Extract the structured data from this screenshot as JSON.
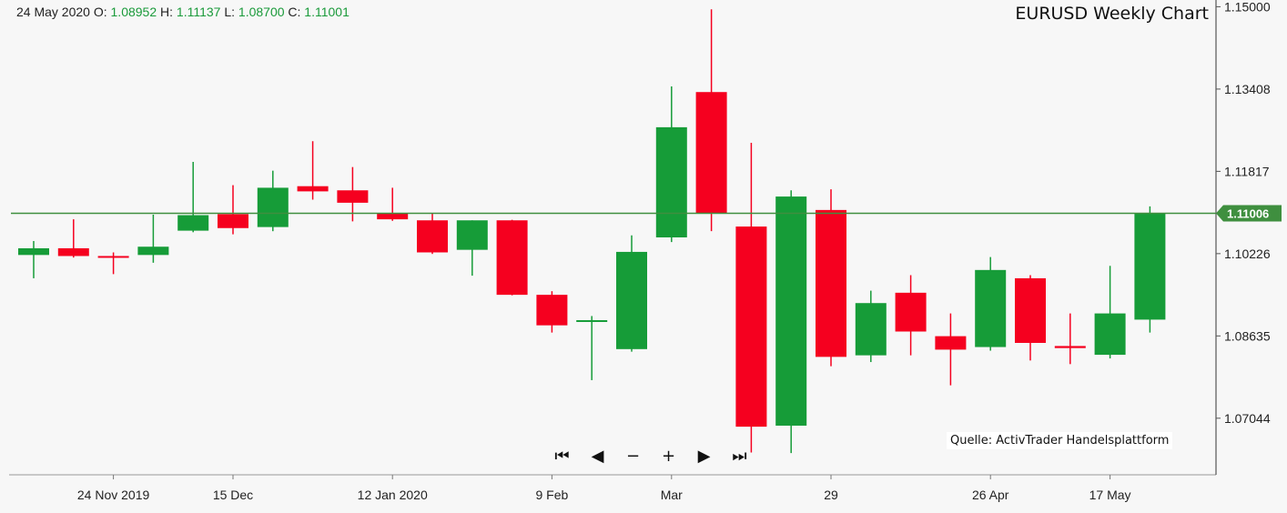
{
  "header": {
    "date": "24 May 2020",
    "o_label": "O:",
    "o_value": "1.08952",
    "h_label": "H:",
    "h_value": "1.11137",
    "l_label": "L:",
    "l_value": "1.08700",
    "c_label": "C:",
    "c_value": "1.11001"
  },
  "title": "EURUSD Weekly Chart",
  "source": "Quelle: ActivTrader Handelsplattform",
  "navigation": [
    {
      "name": "first-icon",
      "glyph": "⏮"
    },
    {
      "name": "previous-icon",
      "glyph": "◀"
    },
    {
      "name": "zoom-out-icon",
      "glyph": "−"
    },
    {
      "name": "zoom-in-icon",
      "glyph": "+"
    },
    {
      "name": "next-icon",
      "glyph": "▶"
    },
    {
      "name": "last-icon",
      "glyph": "⏭"
    }
  ],
  "colors": {
    "up": "#169c38",
    "down": "#f5001f",
    "last_price_line": "#3f8f3f",
    "last_price_badge": "#3f8f3f",
    "background": "#f7f7f7"
  },
  "chart_data": {
    "type": "candlestick",
    "title": "EURUSD Weekly Chart",
    "y_ticks": [
      "1.15000",
      "1.13408",
      "1.11817",
      "1.10226",
      "1.08635",
      "1.07044"
    ],
    "ylim": [
      1.0595,
      1.1513
    ],
    "last_price": "1.11006",
    "x_tick_labels": [
      {
        "label": "24 Nov 2019",
        "index": 2
      },
      {
        "label": "15 Dec",
        "index": 5
      },
      {
        "label": "12 Jan 2020",
        "index": 9
      },
      {
        "label": "9 Feb",
        "index": 13
      },
      {
        "label": "Mar",
        "index": 16
      },
      {
        "label": "29",
        "index": 20
      },
      {
        "label": "26 Apr",
        "index": 24
      },
      {
        "label": "17 May",
        "index": 27
      }
    ],
    "candles": [
      {
        "o": 1.102,
        "h": 1.1047,
        "l": 1.0975,
        "c": 1.1033
      },
      {
        "o": 1.1033,
        "h": 1.1089,
        "l": 1.1015,
        "c": 1.1018
      },
      {
        "o": 1.1018,
        "h": 1.1025,
        "l": 1.0983,
        "c": 1.1017
      },
      {
        "o": 1.102,
        "h": 1.1098,
        "l": 1.1005,
        "c": 1.1036
      },
      {
        "o": 1.1067,
        "h": 1.12,
        "l": 1.1064,
        "c": 1.1097
      },
      {
        "o": 1.1099,
        "h": 1.1155,
        "l": 1.106,
        "c": 1.1072
      },
      {
        "o": 1.1074,
        "h": 1.1183,
        "l": 1.1066,
        "c": 1.115
      },
      {
        "o": 1.1153,
        "h": 1.124,
        "l": 1.1127,
        "c": 1.1143
      },
      {
        "o": 1.1145,
        "h": 1.119,
        "l": 1.1085,
        "c": 1.1121
      },
      {
        "o": 1.11,
        "h": 1.115,
        "l": 1.1086,
        "c": 1.1089
      },
      {
        "o": 1.1087,
        "h": 1.11,
        "l": 1.1022,
        "c": 1.1025
      },
      {
        "o": 1.103,
        "h": 1.1087,
        "l": 1.098,
        "c": 1.1087
      },
      {
        "o": 1.1087,
        "h": 1.1088,
        "l": 1.0942,
        "c": 1.0943
      },
      {
        "o": 1.0943,
        "h": 1.095,
        "l": 1.087,
        "c": 1.0884
      },
      {
        "o": 1.0894,
        "h": 1.0902,
        "l": 1.0778,
        "c": 1.0894
      },
      {
        "o": 1.0838,
        "h": 1.1058,
        "l": 1.0833,
        "c": 1.1026
      },
      {
        "o": 1.1054,
        "h": 1.1346,
        "l": 1.1045,
        "c": 1.1267
      },
      {
        "o": 1.1335,
        "h": 1.1495,
        "l": 1.1066,
        "c": 1.1101
      },
      {
        "o": 1.1075,
        "h": 1.1237,
        "l": 1.0638,
        "c": 1.0688
      },
      {
        "o": 1.069,
        "h": 1.1145,
        "l": 1.0637,
        "c": 1.1133
      },
      {
        "o": 1.1107,
        "h": 1.1147,
        "l": 1.0805,
        "c": 1.0823
      },
      {
        "o": 1.0826,
        "h": 1.0951,
        "l": 1.0813,
        "c": 1.0927
      },
      {
        "o": 1.0947,
        "h": 1.0981,
        "l": 1.0826,
        "c": 1.0872
      },
      {
        "o": 1.0863,
        "h": 1.0907,
        "l": 1.0768,
        "c": 1.0837
      },
      {
        "o": 1.0842,
        "h": 1.1016,
        "l": 1.0835,
        "c": 1.0991
      },
      {
        "o": 1.0975,
        "h": 1.0981,
        "l": 1.0816,
        "c": 1.085
      },
      {
        "o": 1.0844,
        "h": 1.0907,
        "l": 1.0809,
        "c": 1.084
      },
      {
        "o": 1.0827,
        "h": 1.0999,
        "l": 1.082,
        "c": 1.0907
      },
      {
        "o": 1.0895,
        "h": 1.1114,
        "l": 1.087,
        "c": 1.11
      }
    ]
  }
}
